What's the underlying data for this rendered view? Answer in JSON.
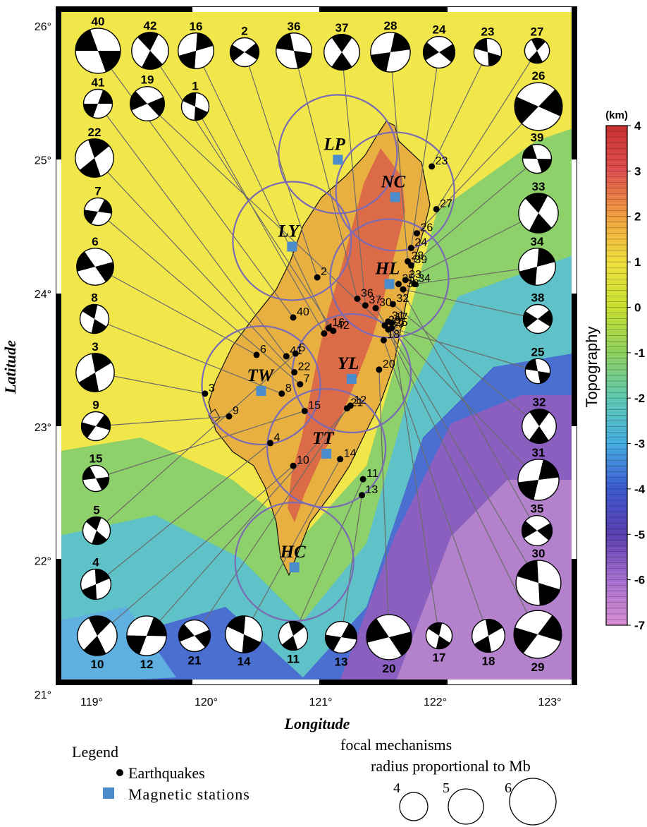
{
  "axes": {
    "xlabel": "Longitude",
    "ylabel": "Latitude",
    "x_ticks": [
      "119°",
      "120°",
      "121°",
      "122°",
      "123°"
    ],
    "y_ticks": [
      "26°",
      "25°",
      "24°",
      "23°",
      "22°",
      "21°"
    ],
    "lon_range": [
      118.9,
      123.05
    ],
    "lat_range": [
      21.0,
      26.1
    ]
  },
  "colorbar": {
    "unit": "(km)",
    "label": "Topography",
    "ticks": [
      "4",
      "3",
      "2",
      "1",
      "0",
      "-1",
      "-2",
      "-3",
      "-4",
      "-5",
      "-6",
      "-7"
    ],
    "range": [
      -7,
      4
    ],
    "colors": [
      "#d68fd0",
      "#a66fd0",
      "#5a3fb0",
      "#3d5ad0",
      "#46aee0",
      "#5fc8b0",
      "#8fd060",
      "#c8e030",
      "#f0e040",
      "#f0a040",
      "#e05050",
      "#c83030"
    ]
  },
  "stations": [
    {
      "code": "LP",
      "lon": 121.15,
      "lat": 25.0
    },
    {
      "code": "NC",
      "lon": 121.65,
      "lat": 24.72
    },
    {
      "code": "LY",
      "lon": 120.75,
      "lat": 24.35
    },
    {
      "code": "HL",
      "lon": 121.6,
      "lat": 24.07
    },
    {
      "code": "YL",
      "lon": 121.27,
      "lat": 23.36
    },
    {
      "code": "TW",
      "lon": 120.48,
      "lat": 23.27
    },
    {
      "code": "TT",
      "lon": 121.05,
      "lat": 22.8
    },
    {
      "code": "HC",
      "lon": 120.77,
      "lat": 21.95
    }
  ],
  "earthquakes": [
    {
      "id": "1",
      "lon": 121.03,
      "lat": 23.7
    },
    {
      "id": "2",
      "lon": 120.97,
      "lat": 24.12
    },
    {
      "id": "3",
      "lon": 119.99,
      "lat": 23.25
    },
    {
      "id": "4",
      "lon": 120.56,
      "lat": 22.88
    },
    {
      "id": "5",
      "lon": 120.78,
      "lat": 23.55
    },
    {
      "id": "6",
      "lon": 120.44,
      "lat": 23.54
    },
    {
      "id": "7",
      "lon": 120.82,
      "lat": 23.32
    },
    {
      "id": "8",
      "lon": 120.66,
      "lat": 23.25
    },
    {
      "id": "9",
      "lon": 120.2,
      "lat": 23.08
    },
    {
      "id": "10",
      "lon": 120.76,
      "lat": 22.71
    },
    {
      "id": "11",
      "lon": 121.37,
      "lat": 22.61
    },
    {
      "id": "12",
      "lon": 121.26,
      "lat": 23.16
    },
    {
      "id": "13",
      "lon": 121.36,
      "lat": 22.49
    },
    {
      "id": "14",
      "lon": 121.17,
      "lat": 22.76
    },
    {
      "id": "15",
      "lon": 120.86,
      "lat": 23.12
    },
    {
      "id": "16",
      "lon": 121.07,
      "lat": 23.74
    },
    {
      "id": "17",
      "lon": 121.62,
      "lat": 23.78
    },
    {
      "id": "18",
      "lon": 121.55,
      "lat": 23.65
    },
    {
      "id": "19",
      "lon": 121.59,
      "lat": 23.73
    },
    {
      "id": "20",
      "lon": 121.51,
      "lat": 23.43
    },
    {
      "id": "21",
      "lon": 121.23,
      "lat": 23.14
    },
    {
      "id": "22",
      "lon": 120.77,
      "lat": 23.41
    },
    {
      "id": "23",
      "lon": 121.97,
      "lat": 24.95
    },
    {
      "id": "24",
      "lon": 121.79,
      "lat": 24.34
    },
    {
      "id": "25",
      "lon": 121.62,
      "lat": 23.74
    },
    {
      "id": "26",
      "lon": 121.84,
      "lat": 24.45
    },
    {
      "id": "27",
      "lon": 122.01,
      "lat": 24.63
    },
    {
      "id": "28",
      "lon": 121.76,
      "lat": 24.24
    },
    {
      "id": "29",
      "lon": 121.56,
      "lat": 23.76
    },
    {
      "id": "30",
      "lon": 121.48,
      "lat": 23.89
    },
    {
      "id": "31",
      "lon": 121.59,
      "lat": 23.79
    },
    {
      "id": "32",
      "lon": 121.63,
      "lat": 23.92
    },
    {
      "id": "33",
      "lon": 121.74,
      "lat": 24.1
    },
    {
      "id": "34",
      "lon": 121.82,
      "lat": 24.07
    },
    {
      "id": "35",
      "lon": 121.68,
      "lat": 24.07
    },
    {
      "id": "36",
      "lon": 121.32,
      "lat": 23.96
    },
    {
      "id": "37",
      "lon": 121.39,
      "lat": 23.91
    },
    {
      "id": "38",
      "lon": 121.72,
      "lat": 24.03
    },
    {
      "id": "39",
      "lon": 121.79,
      "lat": 24.21
    },
    {
      "id": "40",
      "lon": 120.76,
      "lat": 23.82
    },
    {
      "id": "41",
      "lon": 120.7,
      "lat": 23.53
    },
    {
      "id": "42",
      "lon": 121.11,
      "lat": 23.72
    }
  ],
  "focal_mechanisms": [
    {
      "id": "40",
      "slot": "top-0",
      "mb": 6.2
    },
    {
      "id": "42",
      "slot": "top-1",
      "mb": 5.6
    },
    {
      "id": "16",
      "slot": "top-2",
      "mb": 5.5
    },
    {
      "id": "2",
      "slot": "top-3",
      "mb": 5.0
    },
    {
      "id": "36",
      "slot": "top-4",
      "mb": 5.5
    },
    {
      "id": "37",
      "slot": "top-5",
      "mb": 5.5
    },
    {
      "id": "28",
      "slot": "top-6",
      "mb": 5.8
    },
    {
      "id": "24",
      "slot": "top-7",
      "mb": 5.2
    },
    {
      "id": "23",
      "slot": "top-8",
      "mb": 4.9
    },
    {
      "id": "27",
      "slot": "top-9",
      "mb": 4.7
    },
    {
      "id": "41",
      "slot": "left-0",
      "mb": 5.0
    },
    {
      "id": "19",
      "slot": "left-1",
      "mb": 5.4
    },
    {
      "id": "1",
      "slot": "left-2",
      "mb": 4.9
    },
    {
      "id": "22",
      "slot": "left-3",
      "mb": 5.7
    },
    {
      "id": "7",
      "slot": "left-4",
      "mb": 4.9
    },
    {
      "id": "6",
      "slot": "left-5",
      "mb": 5.6
    },
    {
      "id": "8",
      "slot": "left-6",
      "mb": 5.0
    },
    {
      "id": "3",
      "slot": "left-7",
      "mb": 5.7
    },
    {
      "id": "9",
      "slot": "left-8",
      "mb": 5.0
    },
    {
      "id": "15",
      "slot": "left-9",
      "mb": 4.8
    },
    {
      "id": "5",
      "slot": "left-10",
      "mb": 4.9
    },
    {
      "id": "4",
      "slot": "left-11",
      "mb": 5.1
    },
    {
      "id": "26",
      "slot": "right-0",
      "mb": 6.4
    },
    {
      "id": "39",
      "slot": "right-1",
      "mb": 5.0
    },
    {
      "id": "33",
      "slot": "right-2",
      "mb": 5.8
    },
    {
      "id": "34",
      "slot": "right-3",
      "mb": 5.6
    },
    {
      "id": "38",
      "slot": "right-4",
      "mb": 5.0
    },
    {
      "id": "25",
      "slot": "right-5",
      "mb": 4.7
    },
    {
      "id": "32",
      "slot": "right-6",
      "mb": 5.4
    },
    {
      "id": "31",
      "slot": "right-7",
      "mb": 5.9
    },
    {
      "id": "35",
      "slot": "right-8",
      "mb": 5.1
    },
    {
      "id": "30",
      "slot": "right-9",
      "mb": 6.2
    },
    {
      "id": "10",
      "slot": "bottom-0",
      "mb": 5.8
    },
    {
      "id": "12",
      "slot": "bottom-1",
      "mb": 5.8
    },
    {
      "id": "21",
      "slot": "bottom-2",
      "mb": 5.2
    },
    {
      "id": "14",
      "slot": "bottom-3",
      "mb": 5.6
    },
    {
      "id": "11",
      "slot": "bottom-4",
      "mb": 5.0
    },
    {
      "id": "13",
      "slot": "bottom-5",
      "mb": 5.2
    },
    {
      "id": "20",
      "slot": "bottom-6",
      "mb": 6.2
    },
    {
      "id": "17",
      "slot": "bottom-7",
      "mb": 4.8
    },
    {
      "id": "18",
      "slot": "bottom-8",
      "mb": 5.3
    },
    {
      "id": "29",
      "slot": "bottom-9",
      "mb": 6.4
    }
  ],
  "legend": {
    "title": "Legend",
    "earthquakes": "Earthquakes",
    "stations": "Magnetic stations",
    "fm_title": "focal mechanisms",
    "fm_subtitle": "radius proportional to Mb",
    "fm_sizes": [
      "4",
      "5",
      "6"
    ],
    "colors": {
      "station": "#4a8ccc",
      "quake": "#000000",
      "circle": "#7b6bb5",
      "link": "#6a6a6a"
    }
  }
}
